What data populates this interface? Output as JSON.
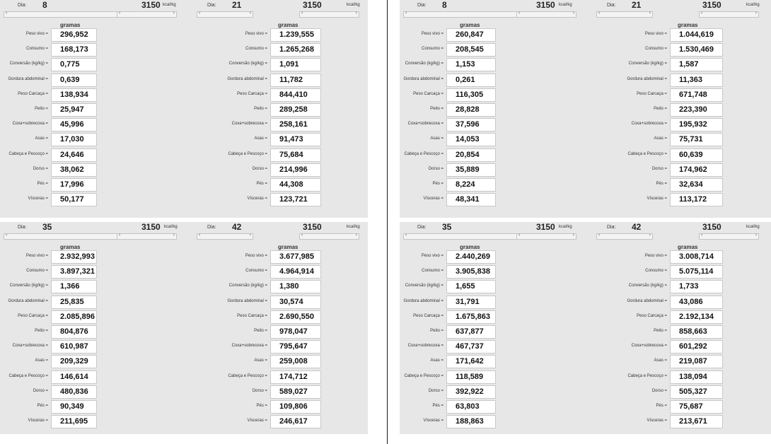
{
  "units": {
    "dia_label": "Dia:",
    "kcal_unit": "kcal/kg",
    "gramas_label": "gramas"
  },
  "labels": {
    "peso_vivo": "Peso vivo =",
    "consumo": "Consumo =",
    "conversao": "Conversão (kg/kg) =",
    "gordura": "Gordura abdominal =",
    "peso_carcaca": "Peso Carcaça =",
    "peito": "Peito =",
    "coxa": "Coxa+sobrecoxa =",
    "asas": "Asas =",
    "cabeca": "Cabeça e Pescoço =",
    "dorso": "Dorso =",
    "pes": "Pés =",
    "visceras": "Vísceras ="
  },
  "left": {
    "p8": {
      "dia": "8",
      "kcal": "3150",
      "values": [
        "296,952",
        "168,173",
        "0,775",
        "0,639",
        "138,934",
        "25,947",
        "45,996",
        "17,030",
        "24,646",
        "38,062",
        "17,996",
        "50,177"
      ]
    },
    "p21": {
      "dia": "21",
      "kcal": "3150",
      "values": [
        "1.239,555",
        "1.265,268",
        "1,091",
        "11,782",
        "844,410",
        "289,258",
        "258,161",
        "91,473",
        "75,684",
        "214,996",
        "44,308",
        "123,721"
      ]
    },
    "p35": {
      "dia": "35",
      "kcal": "3150",
      "values": [
        "2.932,993",
        "3.897,321",
        "1,366",
        "25,835",
        "2.085,896",
        "804,876",
        "610,987",
        "209,329",
        "146,614",
        "480,836",
        "90,349",
        "211,695"
      ]
    },
    "p42": {
      "dia": "42",
      "kcal": "3150",
      "values": [
        "3.677,985",
        "4.964,914",
        "1,380",
        "30,574",
        "2.690,550",
        "978,047",
        "795,647",
        "259,008",
        "174,712",
        "589,027",
        "109,806",
        "246,617"
      ]
    }
  },
  "right": {
    "p8": {
      "dia": "8",
      "kcal": "3150",
      "values": [
        "260,847",
        "208,545",
        "1,153",
        "0,261",
        "116,305",
        "28,828",
        "37,596",
        "14,053",
        "20,854",
        "35,889",
        "8,224",
        "48,341"
      ]
    },
    "p21": {
      "dia": "21",
      "kcal": "3150",
      "values": [
        "1.044,619",
        "1.530,469",
        "1,587",
        "11,363",
        "671,748",
        "223,390",
        "195,932",
        "75,731",
        "60,639",
        "174,962",
        "32,634",
        "113,172"
      ]
    },
    "p35": {
      "dia": "35",
      "kcal": "3150",
      "values": [
        "2.440,269",
        "3.905,838",
        "1,655",
        "31,791",
        "1.675,863",
        "637,877",
        "467,737",
        "171,642",
        "118,589",
        "392,922",
        "63,803",
        "188,863"
      ]
    },
    "p42": {
      "dia": "42",
      "kcal": "3150",
      "values": [
        "3.008,714",
        "5.075,114",
        "1,733",
        "43,086",
        "2.192,134",
        "858,663",
        "601,292",
        "219,087",
        "138,094",
        "505,327",
        "75,687",
        "213,671"
      ]
    }
  }
}
